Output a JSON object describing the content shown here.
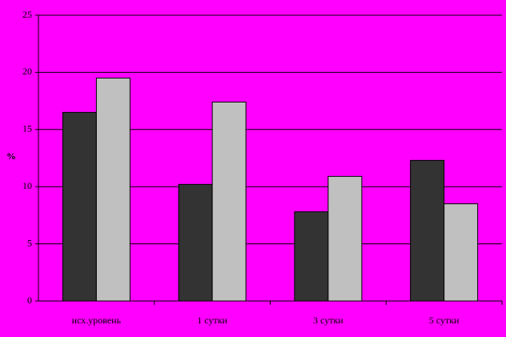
{
  "chart_data": {
    "type": "bar",
    "y_label": "%",
    "categories": [
      "исх.уровень",
      "1 сутки",
      "3 сутки",
      "5 сутки"
    ],
    "series": [
      {
        "color": "#333333",
        "values": [
          16.5,
          10.2,
          7.8,
          12.3
        ]
      },
      {
        "color": "#c0c0c0",
        "values": [
          19.5,
          17.4,
          10.9,
          8.5
        ]
      }
    ],
    "ylim": [
      0,
      25
    ],
    "yticks": [
      0,
      5,
      10,
      15,
      20,
      25
    ],
    "grid": true
  }
}
